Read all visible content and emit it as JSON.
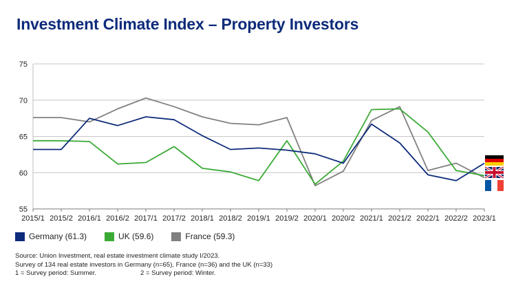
{
  "title": "Investment Climate Index – Property Investors",
  "legend": [
    {
      "label": "Germany (61.3)",
      "color": "#0d2b7a"
    },
    {
      "label": "UK (59.6)",
      "color": "#3aaa35"
    },
    {
      "label": "France (59.3)",
      "color": "#808080"
    }
  ],
  "footnotes": {
    "source": "Source: Union Investment, real estate investment climate study I/2023.",
    "survey": "Survey of 134 real estate investors in Germany (n=65), France (n=36) and the UK (n=33)",
    "period_1": "1 = Survey period: Summer.",
    "period_2": "2 = Survey period: Winter."
  },
  "flags": [
    "Germany",
    "UK",
    "France"
  ],
  "chart_data": {
    "type": "line",
    "categories": [
      "2015/1",
      "2015/2",
      "2016/1",
      "2016/2",
      "2017/1",
      "2017/2",
      "2018/1",
      "2018/2",
      "2019/1",
      "2019/2",
      "2020/1",
      "2020/2",
      "2021/1",
      "2021/2",
      "2022/1",
      "2022/2",
      "2023/1"
    ],
    "series": [
      {
        "name": "Germany (61.3)",
        "color": "#0d2b7a",
        "values": [
          63.2,
          63.2,
          67.5,
          66.5,
          67.7,
          67.3,
          65.1,
          63.2,
          63.4,
          63.1,
          62.6,
          61.3,
          66.7,
          64.1,
          59.7,
          58.9,
          61.3
        ]
      },
      {
        "name": "UK (59.6)",
        "color": "#3aaa35",
        "values": [
          64.4,
          64.4,
          64.3,
          61.2,
          61.4,
          63.6,
          60.6,
          60.1,
          58.9,
          64.4,
          58.4,
          61.6,
          68.7,
          68.8,
          65.6,
          60.3,
          59.6
        ]
      },
      {
        "name": "France (59.3)",
        "color": "#808080",
        "values": [
          67.6,
          67.6,
          67.0,
          68.8,
          70.3,
          69.1,
          67.7,
          66.8,
          66.6,
          67.6,
          58.2,
          60.2,
          67.2,
          69.1,
          60.3,
          61.3,
          59.3
        ]
      }
    ],
    "yticks": [
      55,
      60,
      65,
      70,
      75
    ],
    "ylim": [
      55,
      75
    ],
    "grid": true,
    "legend_position": "bottom"
  }
}
